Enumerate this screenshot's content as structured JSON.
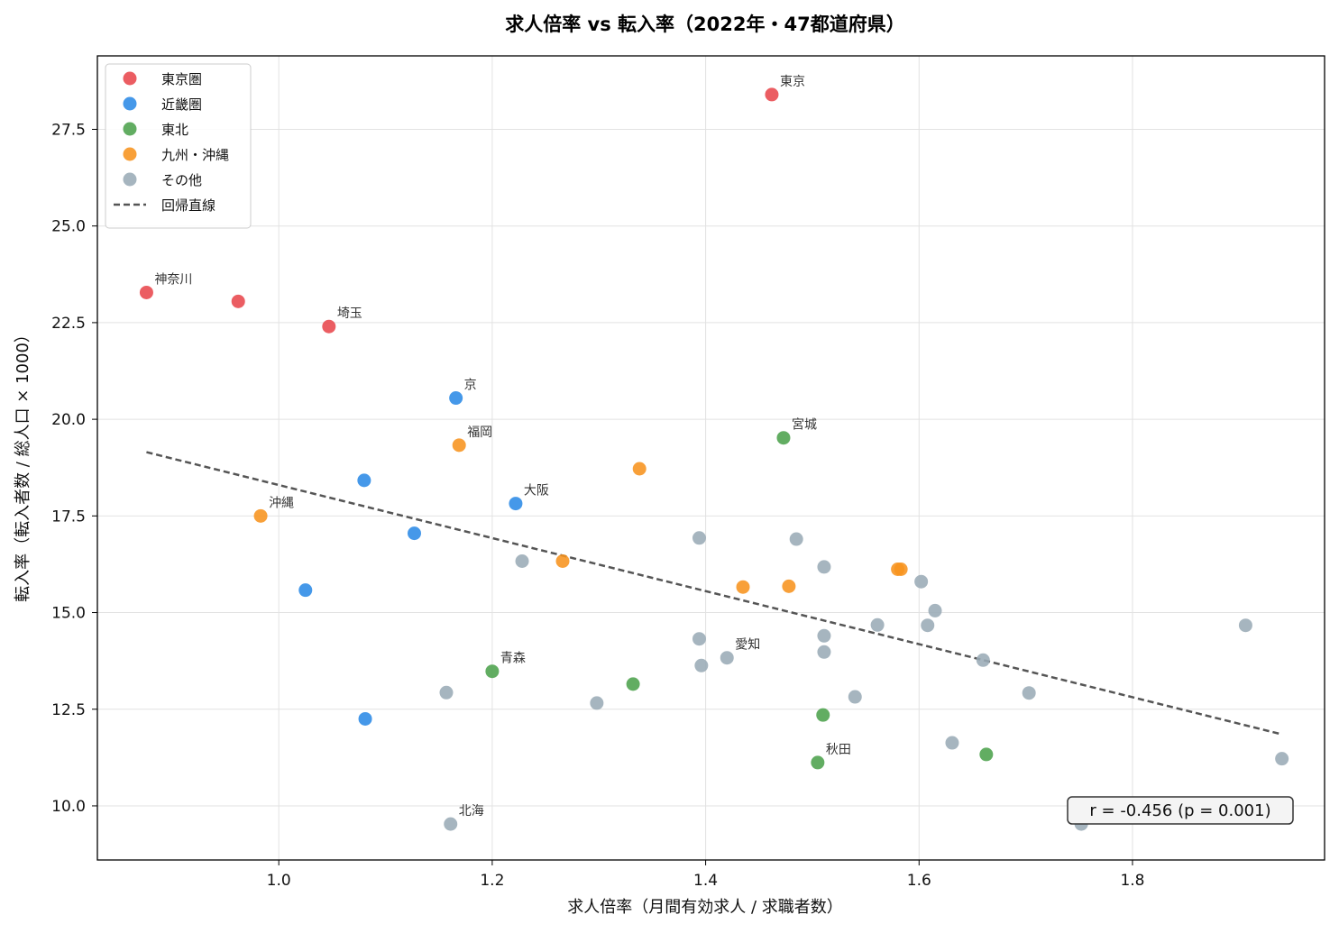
{
  "chart_data": {
    "type": "scatter",
    "title": "求人倍率 vs 転入率（2022年・47都道府県）",
    "xlabel": "求人倍率（月間有効求人 / 求職者数）",
    "ylabel": "転入率（転入者数 / 総人口 × 1000）",
    "xlim": [
      0.83,
      1.98
    ],
    "ylim": [
      8.6,
      29.4
    ],
    "xticks": [
      1.0,
      1.2,
      1.4,
      1.6,
      1.8
    ],
    "yticks": [
      10.0,
      12.5,
      15.0,
      17.5,
      20.0,
      22.5,
      25.0,
      27.5
    ],
    "xtick_labels": [
      "1.0",
      "1.2",
      "1.4",
      "1.6",
      "1.8"
    ],
    "ytick_labels": [
      "10.0",
      "12.5",
      "15.0",
      "17.5",
      "20.0",
      "22.5",
      "25.0",
      "27.5"
    ],
    "grid": true,
    "legend_position": "top-left",
    "series": [
      {
        "name": "東京圏",
        "color": "#e8474c",
        "points": [
          {
            "x": 1.462,
            "y": 28.4,
            "label": "東京"
          },
          {
            "x": 0.876,
            "y": 23.28,
            "label": "神奈川"
          },
          {
            "x": 0.962,
            "y": 23.05,
            "label": ""
          },
          {
            "x": 1.047,
            "y": 22.4,
            "label": "埼玉"
          }
        ]
      },
      {
        "name": "近畿圏",
        "color": "#2b8ae6",
        "points": [
          {
            "x": 1.166,
            "y": 20.55,
            "label": "京"
          },
          {
            "x": 1.08,
            "y": 18.42,
            "label": ""
          },
          {
            "x": 1.222,
            "y": 17.82,
            "label": "大阪"
          },
          {
            "x": 1.127,
            "y": 17.05,
            "label": ""
          },
          {
            "x": 1.025,
            "y": 15.58,
            "label": ""
          },
          {
            "x": 1.081,
            "y": 12.25,
            "label": ""
          }
        ]
      },
      {
        "name": "東北",
        "color": "#4ca24c",
        "points": [
          {
            "x": 1.473,
            "y": 19.52,
            "label": "宮城"
          },
          {
            "x": 1.2,
            "y": 13.48,
            "label": "青森"
          },
          {
            "x": 1.332,
            "y": 13.15,
            "label": ""
          },
          {
            "x": 1.51,
            "y": 12.35,
            "label": ""
          },
          {
            "x": 1.663,
            "y": 11.33,
            "label": ""
          },
          {
            "x": 1.505,
            "y": 11.12,
            "label": "秋田"
          }
        ]
      },
      {
        "name": "九州・沖縄",
        "color": "#f7931e",
        "points": [
          {
            "x": 1.169,
            "y": 19.33,
            "label": "福岡"
          },
          {
            "x": 1.338,
            "y": 18.72,
            "label": ""
          },
          {
            "x": 0.983,
            "y": 17.5,
            "label": "沖縄"
          },
          {
            "x": 1.266,
            "y": 16.33,
            "label": ""
          },
          {
            "x": 1.58,
            "y": 16.12,
            "label": ""
          },
          {
            "x": 1.583,
            "y": 16.12,
            "label": ""
          },
          {
            "x": 1.435,
            "y": 15.66,
            "label": ""
          },
          {
            "x": 1.478,
            "y": 15.68,
            "label": ""
          }
        ]
      },
      {
        "name": "その他",
        "color": "#9aabb6",
        "points": [
          {
            "x": 1.394,
            "y": 16.93,
            "label": ""
          },
          {
            "x": 1.485,
            "y": 16.9,
            "label": ""
          },
          {
            "x": 1.228,
            "y": 16.33,
            "label": ""
          },
          {
            "x": 1.511,
            "y": 16.18,
            "label": ""
          },
          {
            "x": 1.602,
            "y": 15.8,
            "label": ""
          },
          {
            "x": 1.615,
            "y": 15.05,
            "label": ""
          },
          {
            "x": 1.561,
            "y": 14.68,
            "label": ""
          },
          {
            "x": 1.608,
            "y": 14.67,
            "label": ""
          },
          {
            "x": 1.906,
            "y": 14.67,
            "label": ""
          },
          {
            "x": 1.511,
            "y": 14.4,
            "label": ""
          },
          {
            "x": 1.394,
            "y": 14.32,
            "label": ""
          },
          {
            "x": 1.511,
            "y": 13.98,
            "label": ""
          },
          {
            "x": 1.42,
            "y": 13.83,
            "label": "愛知"
          },
          {
            "x": 1.396,
            "y": 13.63,
            "label": ""
          },
          {
            "x": 1.66,
            "y": 13.77,
            "label": ""
          },
          {
            "x": 1.157,
            "y": 12.93,
            "label": ""
          },
          {
            "x": 1.703,
            "y": 12.92,
            "label": ""
          },
          {
            "x": 1.54,
            "y": 12.82,
            "label": ""
          },
          {
            "x": 1.298,
            "y": 12.66,
            "label": ""
          },
          {
            "x": 1.631,
            "y": 11.63,
            "label": ""
          },
          {
            "x": 1.94,
            "y": 11.22,
            "label": ""
          },
          {
            "x": 1.161,
            "y": 9.53,
            "label": "北海"
          },
          {
            "x": 1.752,
            "y": 9.53,
            "label": ""
          }
        ]
      }
    ],
    "regression": {
      "name": "回帰直線",
      "color": "#555555",
      "x": [
        0.876,
        1.94
      ],
      "y": [
        19.15,
        11.85
      ]
    },
    "stats_text": "r = -0.456  (p = 0.001)"
  }
}
